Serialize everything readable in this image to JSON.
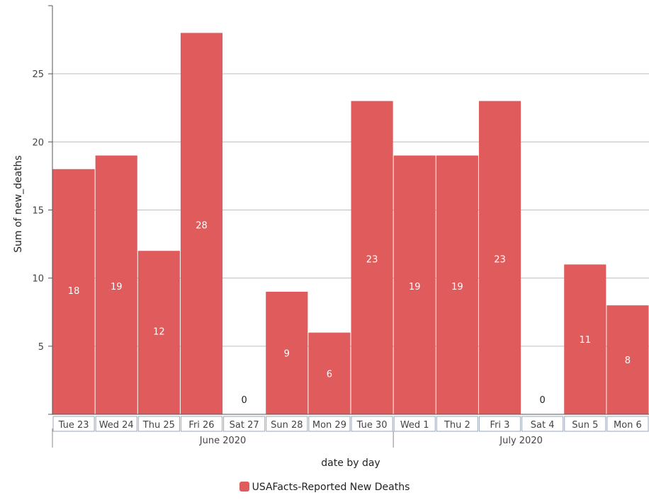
{
  "chart_data": {
    "type": "bar",
    "title": "",
    "xlabel": "date by day",
    "ylabel": "Sum of new_deaths",
    "categories": [
      "Tue 23",
      "Wed 24",
      "Thu 25",
      "Fri 26",
      "Sat 27",
      "Sun 28",
      "Mon 29",
      "Tue 30",
      "Wed 1",
      "Thu 2",
      "Fri 3",
      "Sat 4",
      "Sun 5",
      "Mon 6"
    ],
    "groups": [
      {
        "label": "June 2020",
        "count": 8
      },
      {
        "label": "July 2020",
        "count": 6
      }
    ],
    "series": [
      {
        "name": "USAFacts-Reported New Deaths",
        "values": [
          18,
          19,
          12,
          28,
          0,
          9,
          6,
          23,
          19,
          19,
          23,
          0,
          11,
          8
        ],
        "color": "#e05c5c"
      }
    ],
    "ylim": [
      0,
      30
    ],
    "yticks": [
      5,
      10,
      15,
      20,
      25
    ],
    "grid": true,
    "legend_position": "bottom-center",
    "label_positions": [
      9.1,
      9.4,
      6.1,
      13.9,
      1.1,
      4.5,
      3.0,
      11.4,
      9.4,
      9.4,
      11.4,
      1.1,
      5.5,
      4.0
    ]
  },
  "legend": {
    "label": "USAFacts-Reported New Deaths",
    "color": "#e05c5c"
  }
}
